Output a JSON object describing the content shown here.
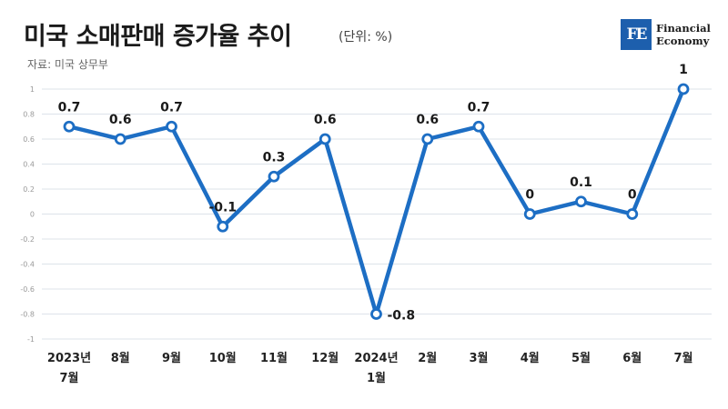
{
  "header": {
    "title": "미국 소매판매 증가율 추이",
    "unit": "(단위: %)",
    "source": "자료: 미국 상무부"
  },
  "logo": {
    "mark": "FE",
    "line1": "Financial",
    "line2": "Economy"
  },
  "colors": {
    "line": "#1d6ec4",
    "grid": "#dde3ea",
    "logo_bg": "#1d5fad"
  },
  "chart_data": {
    "type": "line",
    "title": "미국 소매판매 증가율 추이",
    "categories": [
      "2023년 7월",
      "8월",
      "9월",
      "10월",
      "11월",
      "12월",
      "2024년 1월",
      "2월",
      "3월",
      "4월",
      "5월",
      "6월",
      "7월"
    ],
    "category_lines": [
      [
        "2023년",
        "7월"
      ],
      [
        "8월"
      ],
      [
        "9월"
      ],
      [
        "10월"
      ],
      [
        "11월"
      ],
      [
        "12월"
      ],
      [
        "2024년",
        "1월"
      ],
      [
        "2월"
      ],
      [
        "3월"
      ],
      [
        "4월"
      ],
      [
        "5월"
      ],
      [
        "6월"
      ],
      [
        "7월"
      ]
    ],
    "values": [
      0.7,
      0.6,
      0.7,
      -0.1,
      0.3,
      0.6,
      -0.8,
      0.6,
      0.7,
      0,
      0.1,
      0,
      1
    ],
    "data_labels": [
      "0.7",
      "0.6",
      "0.7",
      "-0.1",
      "0.3",
      "0.6",
      "-0.8",
      "0.6",
      "0.7",
      "0",
      "0.1",
      "0",
      "1"
    ],
    "yticks": [
      1,
      0.8,
      0.6,
      0.4,
      0.2,
      0,
      -0.2,
      -0.4,
      -0.6,
      -0.8,
      -1
    ],
    "ytick_labels": [
      "1",
      "0.8",
      "0.6",
      "0.4",
      "0.2",
      "0",
      "-0.2",
      "-0.4",
      "-0.6",
      "-0.8",
      "-1"
    ],
    "ylim": [
      -1,
      1
    ],
    "grid": true,
    "legend": "none"
  }
}
